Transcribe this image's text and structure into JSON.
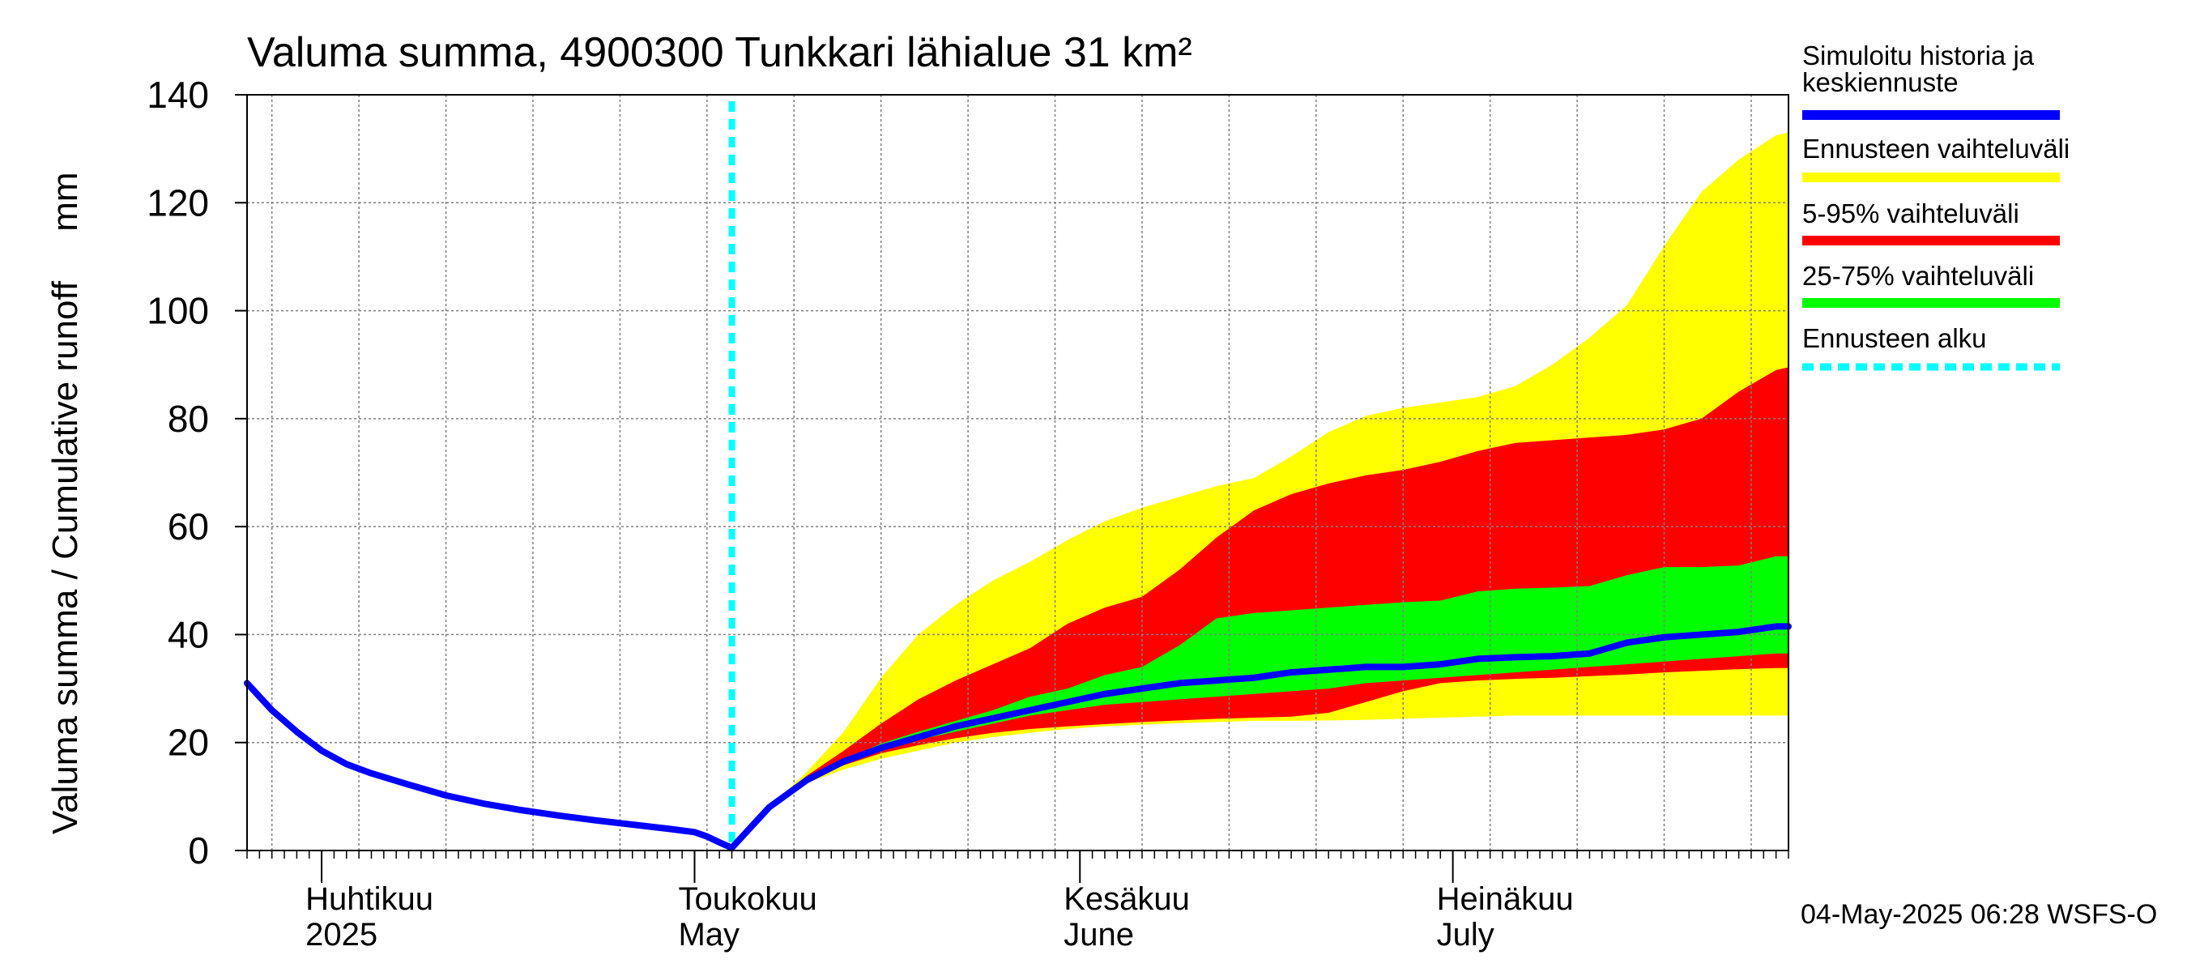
{
  "chart_data": {
    "type": "area",
    "title": "Valuma summa, 4900300 Tunkkari lähialue 31 km²",
    "ylabel": "Valuma summa / Cumulative runoff     mm",
    "ylim": [
      0,
      140
    ],
    "yticks": [
      0,
      20,
      40,
      60,
      80,
      100,
      120,
      140
    ],
    "xlim": [
      "2025-03-26",
      "2025-07-28"
    ],
    "month_labels": [
      {
        "date": "2025-04-01",
        "fi": "Huhtikuu",
        "en": "2025"
      },
      {
        "date": "2025-05-01",
        "fi": "Toukokuu",
        "en": "May"
      },
      {
        "date": "2025-06-01",
        "fi": "Kesäkuu",
        "en": "June"
      },
      {
        "date": "2025-07-01",
        "fi": "Heinäkuu",
        "en": "July"
      }
    ],
    "grid": true,
    "legend_position": "right",
    "forecast_start": "2025-05-04",
    "legend": [
      {
        "label": "Simuloitu historia ja keskiennuste",
        "color": "#0000ff",
        "style": "solid"
      },
      {
        "label": "Ennusteen vaihteluväli",
        "color": "#ffff00",
        "style": "solid"
      },
      {
        "label": "5-95% vaihteluväli",
        "color": "#ff0000",
        "style": "solid"
      },
      {
        "label": "25-75% vaihteluväli",
        "color": "#00ff00",
        "style": "solid"
      },
      {
        "label": "Ennusteen alku",
        "color": "#00ffff",
        "style": "dashed"
      }
    ],
    "history": {
      "x": [
        "2025-03-26",
        "2025-03-28",
        "2025-03-30",
        "2025-04-01",
        "2025-04-03",
        "2025-04-05",
        "2025-04-08",
        "2025-04-11",
        "2025-04-14",
        "2025-04-17",
        "2025-04-20",
        "2025-04-23",
        "2025-04-26",
        "2025-04-29",
        "2025-05-01",
        "2025-05-02",
        "2025-05-03",
        "2025-05-04"
      ],
      "y": [
        31.0,
        26.0,
        22.0,
        18.5,
        16.0,
        14.3,
        12.2,
        10.2,
        8.7,
        7.5,
        6.5,
        5.6,
        4.8,
        4.0,
        3.4,
        2.6,
        1.5,
        0.5
      ]
    },
    "forecast": {
      "x": [
        "2025-05-04",
        "2025-05-07",
        "2025-05-10",
        "2025-05-13",
        "2025-05-16",
        "2025-05-19",
        "2025-05-22",
        "2025-05-25",
        "2025-05-28",
        "2025-05-31",
        "2025-06-03",
        "2025-06-06",
        "2025-06-09",
        "2025-06-12",
        "2025-06-15",
        "2025-06-18",
        "2025-06-21",
        "2025-06-24",
        "2025-06-27",
        "2025-06-30",
        "2025-07-03",
        "2025-07-06",
        "2025-07-09",
        "2025-07-12",
        "2025-07-15",
        "2025-07-18",
        "2025-07-21",
        "2025-07-24",
        "2025-07-27",
        "2025-07-28"
      ],
      "median": [
        0.5,
        8.0,
        13.0,
        16.5,
        19.0,
        21.0,
        23.0,
        24.5,
        26.0,
        27.5,
        29.0,
        30.0,
        31.0,
        31.5,
        32.0,
        33.0,
        33.5,
        34.0,
        34.0,
        34.5,
        35.5,
        35.8,
        36.0,
        36.5,
        38.5,
        39.5,
        40.0,
        40.5,
        41.5,
        41.5
      ],
      "min": [
        0.5,
        8.0,
        12.5,
        15.0,
        17.0,
        18.5,
        20.0,
        21.0,
        21.8,
        22.5,
        23.0,
        23.3,
        23.6,
        23.8,
        24.0,
        24.0,
        24.1,
        24.2,
        24.4,
        24.6,
        24.8,
        25.0,
        25.0,
        25.0,
        25.0,
        25.0,
        25.0,
        25.0,
        25.0,
        25.0
      ],
      "p5": [
        0.5,
        8.0,
        12.8,
        15.8,
        18.0,
        19.5,
        20.8,
        21.8,
        22.5,
        23.0,
        23.4,
        23.8,
        24.1,
        24.4,
        24.6,
        24.8,
        25.5,
        27.5,
        29.5,
        31.0,
        31.5,
        31.8,
        32.0,
        32.3,
        32.6,
        33.0,
        33.3,
        33.6,
        33.8,
        33.8
      ],
      "p25": [
        0.5,
        8.0,
        13.0,
        16.2,
        18.8,
        20.5,
        22.0,
        23.5,
        25.0,
        26.0,
        27.0,
        27.5,
        28.0,
        28.5,
        29.0,
        29.5,
        30.0,
        31.0,
        31.5,
        32.0,
        32.5,
        33.0,
        33.5,
        34.0,
        34.5,
        35.0,
        35.5,
        36.0,
        36.5,
        36.5
      ],
      "p75": [
        0.5,
        8.0,
        13.2,
        16.8,
        19.8,
        22.0,
        24.0,
        26.0,
        28.5,
        30.0,
        32.5,
        34.0,
        38.0,
        43.0,
        44.0,
        44.5,
        45.0,
        45.5,
        46.0,
        46.3,
        48.0,
        48.5,
        48.7,
        49.0,
        51.0,
        52.5,
        52.5,
        52.8,
        54.5,
        54.5
      ],
      "p95": [
        0.5,
        8.0,
        13.8,
        18.5,
        23.5,
        28.0,
        31.5,
        34.5,
        37.5,
        42.0,
        45.0,
        47.0,
        52.0,
        58.0,
        63.0,
        66.0,
        68.0,
        69.5,
        70.5,
        72.0,
        74.0,
        75.5,
        76.0,
        76.5,
        77.0,
        78.0,
        80.0,
        85.0,
        89.0,
        89.5
      ],
      "max": [
        0.5,
        8.0,
        14.5,
        22.0,
        32.0,
        40.0,
        45.5,
        50.0,
        53.5,
        57.5,
        61.0,
        63.5,
        65.5,
        67.5,
        69.0,
        73.0,
        77.5,
        80.5,
        82.0,
        83.0,
        84.0,
        86.0,
        90.0,
        95.0,
        101.0,
        112.0,
        122.0,
        128.0,
        132.5,
        133.0
      ]
    }
  },
  "footer": {
    "timestamp": "04-May-2025 06:28 WSFS-O"
  },
  "colors": {
    "history": "#0000ff",
    "range": "#ffff00",
    "p5_95": "#ff0000",
    "p25_75": "#00ff00",
    "forecast_start": "#00ffff",
    "grid": "#808080"
  }
}
